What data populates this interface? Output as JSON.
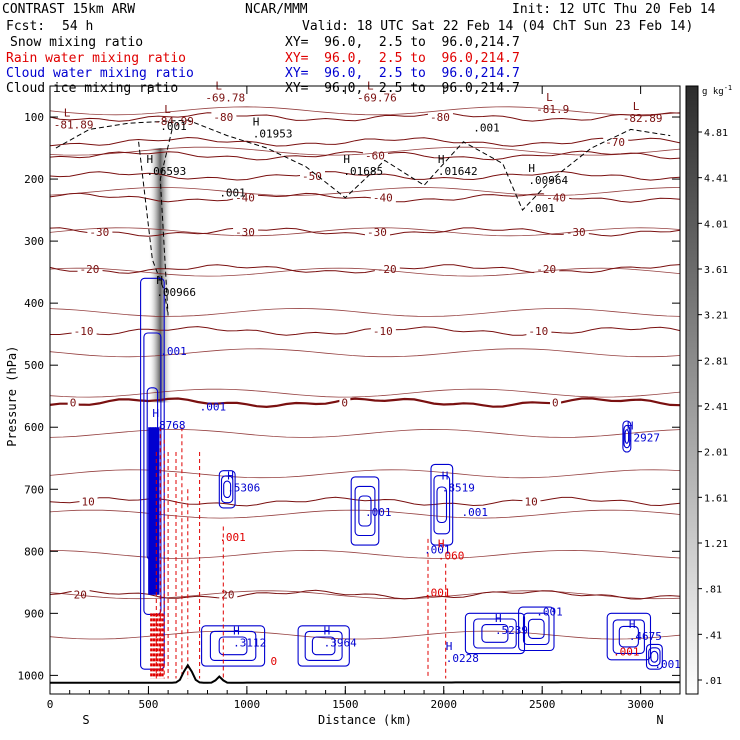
{
  "header": {
    "model": "CONTRAST 15km ARW",
    "center": "NCAR/MMM",
    "init": "Init: 12 UTC Thu 20 Feb 14",
    "fcst_label": "Fcst:",
    "fcst_value": "54 h",
    "valid": "Valid: 18 UTC Sat 22 Feb 14 (04 ChT Sun 23 Feb 14)"
  },
  "fields": [
    {
      "name": "Snow mixing ratio",
      "xy": "XY=  96.0,  2.5 to  96.0,214.7",
      "color": "#000000"
    },
    {
      "name": "Rain water mixing ratio",
      "xy": "XY=  96.0,  2.5 to  96.0,214.7",
      "color": "#e00000"
    },
    {
      "name": "Cloud water mixing ratio",
      "xy": "XY=  96.0,  2.5 to  96.0,214.7",
      "color": "#0000d0"
    },
    {
      "name": "Cloud ice mixing ratio",
      "xy": "XY=  96.0,  2.5 to  96.0,214.7",
      "color": "#000000"
    }
  ],
  "colorbar": {
    "unit": "g kg",
    "unit_exp": "-1",
    "labels": [
      "4.81",
      "4.41",
      "4.01",
      "3.61",
      "3.21",
      "2.81",
      "2.41",
      "2.01",
      "1.61",
      "1.21",
      ".81",
      ".41",
      ".01"
    ]
  },
  "chart_data": {
    "type": "cross-section",
    "xlabel": "Distance (km)",
    "ylabel": "Pressure (hPa)",
    "xlim": [
      0,
      3200
    ],
    "ylim": [
      1030,
      50
    ],
    "x_ticks": [
      0,
      500,
      1000,
      1500,
      2000,
      2500,
      3000
    ],
    "y_ticks": [
      100,
      200,
      300,
      400,
      500,
      600,
      700,
      800,
      900,
      1000
    ],
    "x_end_labels": {
      "left": "S",
      "right": "N"
    },
    "temperature_levels": [
      {
        "value": "-80",
        "label_x": [
          830,
          1930
        ],
        "p": 100
      },
      {
        "value": "-70",
        "label_x": [
          2820
        ],
        "p": 140
      },
      {
        "value": "-60",
        "label_x": [
          1600
        ],
        "p": 162
      },
      {
        "value": "-50",
        "label_x": [
          1280
        ],
        "p": 195
      },
      {
        "value": "-40",
        "label_x": [
          940,
          1640,
          2520
        ],
        "p": 230
      },
      {
        "value": "-30",
        "label_x": [
          200,
          940,
          1610,
          2620
        ],
        "p": 285
      },
      {
        "value": "-20",
        "label_x": [
          150,
          1660,
          2470
        ],
        "p": 345
      },
      {
        "value": "-10",
        "label_x": [
          120,
          1640,
          2430
        ],
        "p": 445
      },
      {
        "value": "0",
        "label_x": [
          100,
          1480,
          2550
        ],
        "p": 560
      },
      {
        "value": "10",
        "label_x": [
          160,
          2410
        ],
        "p": 720
      },
      {
        "value": "20",
        "label_x": [
          120,
          870
        ],
        "p": 870
      }
    ],
    "temperature_extrema": [
      {
        "type": "L",
        "label": "-81.89",
        "x": 70,
        "p": 115
      },
      {
        "type": "L",
        "label": "-84.99",
        "x": 580,
        "p": 110
      },
      {
        "type": "L",
        "label": "-69.78",
        "x": 840,
        "p": 72
      },
      {
        "type": "L",
        "label": "-69.76",
        "x": 1610,
        "p": 72
      },
      {
        "type": "L",
        "label": "-81.9",
        "x": 2520,
        "p": 90
      },
      {
        "type": "L",
        "label": "-82.89",
        "x": 2960,
        "p": 105
      }
    ],
    "snow_ice_labels": [
      {
        "type": "H",
        "label": ".06593",
        "x": 490,
        "p": 190
      },
      {
        "type": "H",
        "label": ".01953",
        "x": 1030,
        "p": 130
      },
      {
        "type": "H",
        "label": ".01685",
        "x": 1490,
        "p": 190
      },
      {
        "type": "H",
        "label": ".01642",
        "x": 1970,
        "p": 190
      },
      {
        "type": "H",
        "label": ".00964",
        "x": 2430,
        "p": 205
      },
      {
        "type": "H",
        "label": ".00966",
        "x": 540,
        "p": 385
      },
      {
        "type": "",
        "label": ".001",
        "x": 560,
        "p": 118
      },
      {
        "type": "",
        "label": ".001",
        "x": 2150,
        "p": 120
      },
      {
        "type": "",
        "label": ".001",
        "x": 860,
        "p": 225
      },
      {
        "type": "",
        "label": ".001",
        "x": 2430,
        "p": 250
      }
    ],
    "cloud_water_labels": [
      {
        "type": "H",
        "label": ".8768",
        "x": 520,
        "p": 600
      },
      {
        "type": "H",
        "label": ".5306",
        "x": 900,
        "p": 700
      },
      {
        "type": "H",
        "label": ".8519",
        "x": 1990,
        "p": 700
      },
      {
        "type": "H",
        "label": ".3112",
        "x": 930,
        "p": 950
      },
      {
        "type": "H",
        "label": ".3964",
        "x": 1390,
        "p": 950
      },
      {
        "type": "H",
        "label": ".0228",
        "x": 2010,
        "p": 975
      },
      {
        "type": "H",
        "label": ".5239",
        "x": 2260,
        "p": 930
      },
      {
        "type": "H",
        "label": ".4675",
        "x": 2940,
        "p": 940
      },
      {
        "type": "H",
        "label": ".2927",
        "x": 2930,
        "p": 620
      },
      {
        "type": "",
        "label": ".001",
        "x": 560,
        "p": 480
      },
      {
        "type": "",
        "label": ".001",
        "x": 760,
        "p": 570
      },
      {
        "type": "",
        "label": ".001",
        "x": 1600,
        "p": 740
      },
      {
        "type": "",
        "label": ".001",
        "x": 1900,
        "p": 800
      },
      {
        "type": "",
        "label": ".001",
        "x": 2090,
        "p": 740
      },
      {
        "type": "",
        "label": ".001",
        "x": 2470,
        "p": 900
      },
      {
        "type": "",
        "label": ".001",
        "x": 3070,
        "p": 985
      }
    ],
    "rain_labels": [
      {
        "type": "H",
        "label": ".060",
        "x": 1970,
        "p": 810
      },
      {
        "type": "",
        "label": ".001",
        "x": 860,
        "p": 780
      },
      {
        "type": "",
        "label": ".001",
        "x": 1900,
        "p": 870
      },
      {
        "type": "",
        "label": ".001",
        "x": 2860,
        "p": 965
      },
      {
        "type": "",
        "label": "0",
        "x": 1120,
        "p": 980
      }
    ],
    "terrain_peak_km": 700,
    "snow_shading_max_x": 560
  }
}
